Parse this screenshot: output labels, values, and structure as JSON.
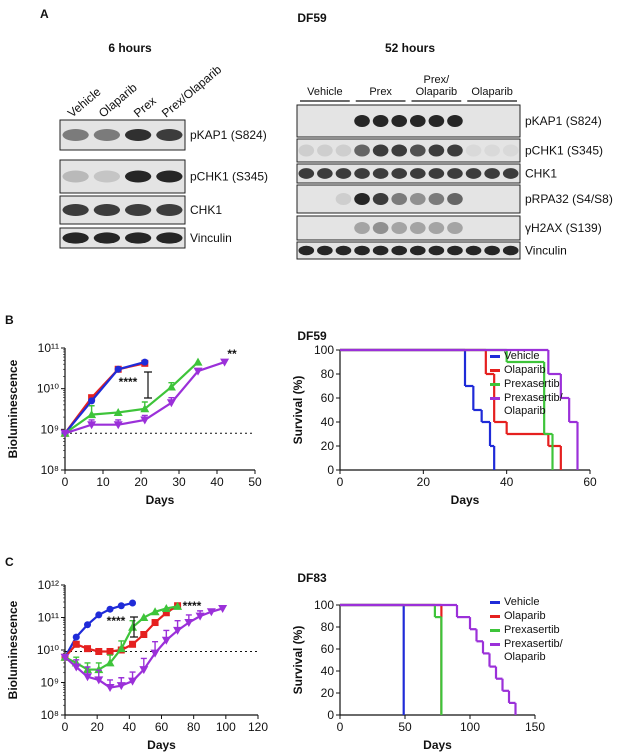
{
  "panel_a": {
    "label": "A",
    "title": "DF59",
    "left": {
      "title": "6 hours",
      "lanes": [
        "Vehicle",
        "Olaparib",
        "Prex",
        "Prex/Olaparib"
      ],
      "blots": [
        "pKAP1 (S824)",
        "pCHK1 (S345)",
        "CHK1",
        "Vinculin"
      ]
    },
    "right": {
      "title": "52 hours",
      "groups": [
        "Vehicle",
        "Prex",
        "Prex/ Olaparib",
        "Olaparib"
      ],
      "blots": [
        "pKAP1 (S824)",
        "pCHK1 (S345)",
        "CHK1",
        "pRPA32 (S4/S8)",
        "γH2AX (S139)",
        "Vinculin"
      ]
    }
  },
  "panel_b": {
    "label": "B",
    "title": "DF59"
  },
  "panel_c": {
    "label": "C",
    "title": "DF83"
  },
  "chart_data": [
    {
      "type": "line",
      "log_scale": true,
      "xlabel": "Days",
      "ylabel": "Bioluminescence",
      "xlim": [
        0,
        50
      ],
      "xticks": [
        0,
        10,
        20,
        30,
        40,
        50
      ],
      "ylim": [
        100000000.0,
        100000000000.0
      ],
      "yticks": [
        {
          "value": 100000000.0,
          "label": "10⁸"
        },
        {
          "value": 1000000000.0,
          "label": "10⁹"
        },
        {
          "value": 10000000000.0,
          "label": "10¹⁰"
        },
        {
          "value": 100000000000.0,
          "label": "10¹¹"
        }
      ],
      "reference_line": 800000000.0,
      "annotations": [
        "****",
        "**"
      ],
      "series": [
        {
          "color": "#e5201f",
          "marker": "square",
          "x": [
            0,
            7,
            14,
            21
          ],
          "values": [
            800000000.0,
            6000000000.0,
            30000000000.0,
            42000000000.0
          ]
        },
        {
          "color": "#1f2bd8",
          "marker": "circle",
          "x": [
            0,
            7,
            14,
            21
          ],
          "values": [
            800000000.0,
            5000000000.0,
            30000000000.0,
            45000000000.0
          ]
        },
        {
          "color": "#3ec43a",
          "marker": "triangle",
          "x": [
            0,
            7,
            14,
            21,
            28,
            35
          ],
          "values": [
            800000000.0,
            2300000000.0,
            2600000000.0,
            3200000000.0,
            11000000000.0,
            45000000000.0
          ],
          "errors": [
            null,
            1500000000.0,
            null,
            1500000000.0,
            3000000000.0,
            null
          ]
        },
        {
          "color": "#9b30d9",
          "marker": "triangle-down",
          "x": [
            0,
            7,
            14,
            21,
            28,
            35,
            42
          ],
          "values": [
            800000000.0,
            1300000000.0,
            1300000000.0,
            1700000000.0,
            4500000000.0,
            27000000000.0,
            45000000000.0
          ],
          "errors": [
            null,
            400000000.0,
            400000000.0,
            500000000.0,
            1500000000.0,
            null,
            null
          ]
        }
      ]
    },
    {
      "type": "step",
      "xlabel": "Days",
      "ylabel": "Survival (%)",
      "xlim": [
        0,
        60
      ],
      "xticks": [
        0,
        20,
        40,
        60
      ],
      "ylim": [
        0,
        100
      ],
      "yticks": [
        0,
        20,
        40,
        60,
        80,
        100
      ],
      "series": [
        {
          "name": "Vehicle",
          "color": "#1f2bd8",
          "x": [
            0,
            30,
            32,
            34,
            36,
            37
          ],
          "values": [
            100,
            70,
            50,
            40,
            20,
            0
          ]
        },
        {
          "name": "Olaparib",
          "color": "#e5201f",
          "x": [
            0,
            35,
            37,
            40,
            50,
            53
          ],
          "values": [
            100,
            80,
            40,
            30,
            20,
            0
          ]
        },
        {
          "name": "Prexasertib",
          "color": "#3ec43a",
          "x": [
            0,
            40,
            49,
            51
          ],
          "values": [
            100,
            90,
            30,
            0
          ]
        },
        {
          "name": "Prexasertib/ Olaparib",
          "color": "#9b30d9",
          "x": [
            0,
            50,
            53,
            55,
            57
          ],
          "values": [
            100,
            80,
            60,
            40,
            0
          ]
        }
      ]
    },
    {
      "type": "line",
      "log_scale": true,
      "xlabel": "Days",
      "ylabel": "Bioluminescence",
      "xlim": [
        0,
        120
      ],
      "xticks": [
        0,
        20,
        40,
        60,
        80,
        100,
        120
      ],
      "ylim": [
        100000000.0,
        1000000000000.0
      ],
      "yticks": [
        {
          "value": 100000000.0,
          "label": "10⁸"
        },
        {
          "value": 1000000000.0,
          "label": "10⁹"
        },
        {
          "value": 10000000000.0,
          "label": "10¹⁰"
        },
        {
          "value": 100000000000.0,
          "label": "10¹¹"
        },
        {
          "value": 1000000000000.0,
          "label": "10¹²"
        }
      ],
      "reference_line": 9000000000.0,
      "annotations": [
        "****",
        "****"
      ],
      "series": [
        {
          "color": "#1f2bd8",
          "marker": "circle",
          "x": [
            0,
            7,
            14,
            21,
            28,
            35,
            42
          ],
          "values": [
            6000000000.0,
            25000000000.0,
            60000000000.0,
            120000000000.0,
            180000000000.0,
            230000000000.0,
            280000000000.0
          ]
        },
        {
          "color": "#e5201f",
          "marker": "square",
          "x": [
            0,
            7,
            14,
            21,
            28,
            35,
            42,
            49,
            56,
            63,
            70
          ],
          "values": [
            6000000000.0,
            15000000000.0,
            11000000000.0,
            9000000000.0,
            9000000000.0,
            10000000000.0,
            15000000000.0,
            30000000000.0,
            70000000000.0,
            140000000000.0,
            230000000000.0
          ]
        },
        {
          "color": "#3ec43a",
          "marker": "triangle",
          "x": [
            0,
            7,
            14,
            21,
            28,
            35,
            42,
            49,
            56,
            63,
            70
          ],
          "values": [
            6000000000.0,
            4000000000.0,
            2500000000.0,
            2500000000.0,
            4000000000.0,
            11000000000.0,
            50000000000.0,
            100000000000.0,
            150000000000.0,
            190000000000.0,
            220000000000.0
          ],
          "errors": [
            null,
            2000000000.0,
            1500000000.0,
            1500000000.0,
            3000000000.0,
            8000000000.0,
            30000000000.0,
            null,
            null,
            null,
            null
          ]
        },
        {
          "color": "#9b30d9",
          "marker": "triangle-down",
          "x": [
            0,
            7,
            14,
            21,
            28,
            35,
            42,
            49,
            56,
            63,
            70,
            77,
            84,
            91,
            98
          ],
          "values": [
            6000000000.0,
            3000000000.0,
            1500000000.0,
            1200000000.0,
            700000000.0,
            800000000.0,
            1100000000.0,
            2500000000.0,
            8000000000.0,
            20000000000.0,
            40000000000.0,
            70000000000.0,
            110000000000.0,
            150000000000.0,
            190000000000.0
          ],
          "errors": [
            null,
            2000000000.0,
            1500000000.0,
            1200000000.0,
            500000000.0,
            600000000.0,
            1000000000.0,
            3000000000.0,
            10000000000.0,
            20000000000.0,
            40000000000.0,
            50000000000.0,
            50000000000.0,
            null,
            null
          ]
        }
      ]
    },
    {
      "type": "step",
      "xlabel": "Days",
      "ylabel": "Survival (%)",
      "xlim": [
        0,
        150
      ],
      "xticks": [
        0,
        50,
        100,
        150
      ],
      "ylim": [
        0,
        100
      ],
      "yticks": [
        0,
        20,
        40,
        60,
        80,
        100
      ],
      "series": [
        {
          "name": "Vehicle",
          "color": "#1f2bd8",
          "x": [
            0,
            49
          ],
          "values": [
            100,
            0
          ]
        },
        {
          "name": "Olaparib",
          "color": "#e5201f",
          "x": [
            0,
            78
          ],
          "values": [
            100,
            0
          ]
        },
        {
          "name": "Prexasertib",
          "color": "#3ec43a",
          "x": [
            0,
            73,
            78
          ],
          "values": [
            100,
            89,
            0
          ]
        },
        {
          "name": "Prexasertib/ Olaparib",
          "color": "#9b30d9",
          "x": [
            0,
            90,
            100,
            105,
            110,
            115,
            120,
            125,
            130,
            135
          ],
          "values": [
            100,
            89,
            78,
            67,
            56,
            44,
            33,
            22,
            11,
            0
          ]
        }
      ]
    }
  ]
}
